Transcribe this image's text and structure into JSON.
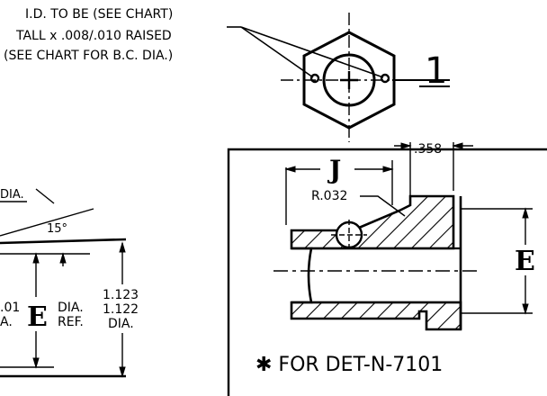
{
  "note": {
    "line1": "I.D. TO BE (SEE CHART)",
    "line2": "TALL x .008/.010 RAISED",
    "line3": "(SEE CHART FOR B.C. DIA.)"
  },
  "view_label": "1",
  "dims": {
    "j": "J",
    "d358": ".358",
    "r032": "R.032",
    "e_right": "E",
    "e_left": "E",
    "dia_partial": "DIA.",
    "angle": "15°",
    "dia_ref_1": "DIA.",
    "dia_ref_2": "REF.",
    "d01": ".01",
    "a_frag": "A.",
    "max_dia": "1.123",
    "min_dia": "1.122",
    "dia_right": "DIA."
  },
  "footnote": "✱ FOR DET-N-7101"
}
